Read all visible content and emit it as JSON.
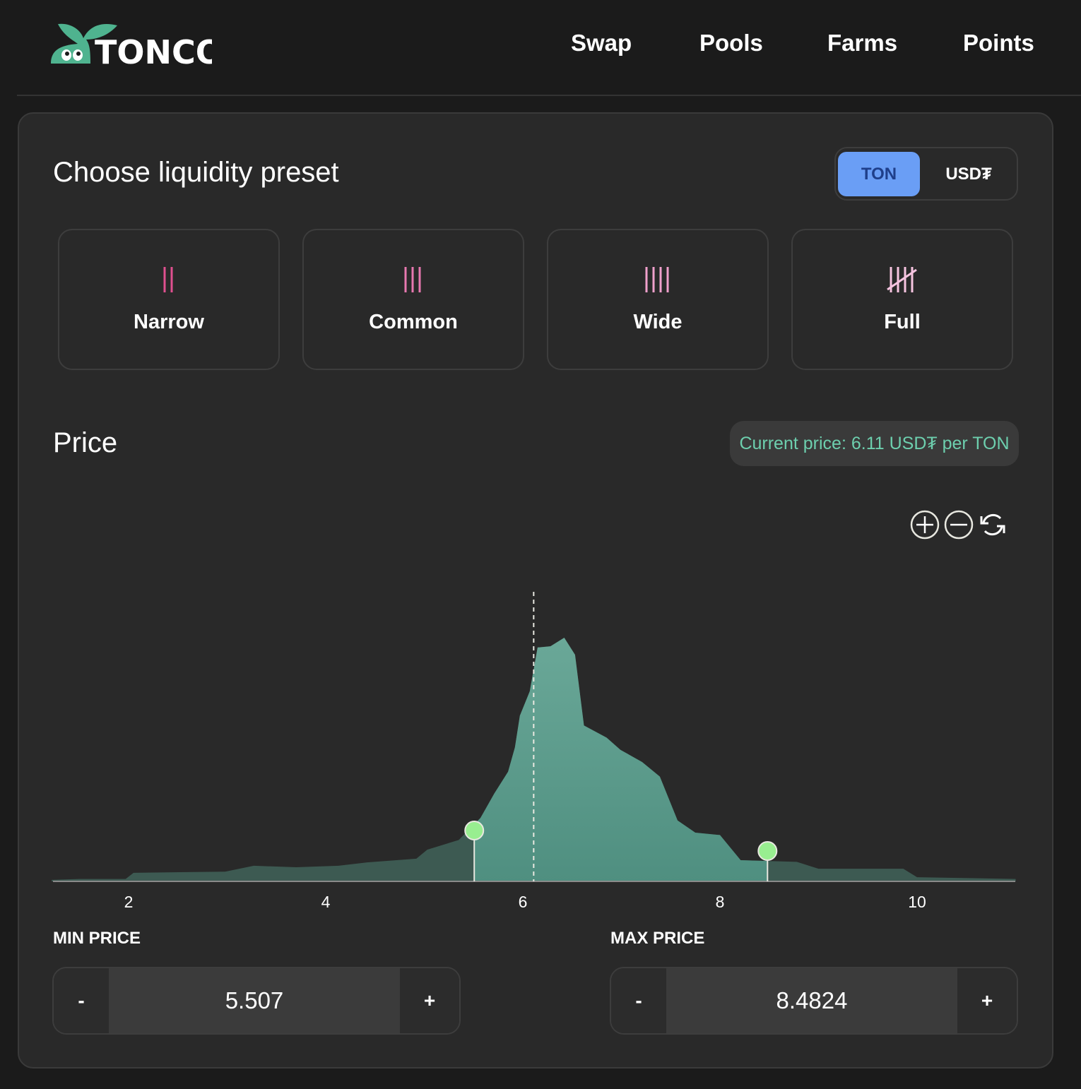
{
  "brand": {
    "logo_text": "TONCO",
    "logo_color": "#4fb38f"
  },
  "nav": {
    "items": [
      "Swap",
      "Pools",
      "Farms",
      "Points"
    ]
  },
  "preset": {
    "title": "Choose liquidity preset",
    "options": [
      {
        "label": "Narrow",
        "icon": "two-bars-icon",
        "color": "#e0508f"
      },
      {
        "label": "Common",
        "icon": "three-bars-icon",
        "color": "#e878b0"
      },
      {
        "label": "Wide",
        "icon": "four-bars-icon",
        "color": "#f0a0cc"
      },
      {
        "label": "Full",
        "icon": "tally-five-icon",
        "color": "#f6c4e0"
      }
    ]
  },
  "token_toggle": {
    "options": [
      "TON",
      "USD₮"
    ],
    "selected": "TON",
    "accent": "#6a9ef5"
  },
  "price": {
    "title": "Price",
    "current_price_label": "Current price: 6.11 USD₮ per TON"
  },
  "chart_controls": [
    "zoom-in-icon",
    "zoom-out-icon",
    "reset-icon"
  ],
  "chart_data": {
    "type": "area",
    "xlim": [
      1.22,
      11.0
    ],
    "x_ticks": [
      "2",
      "4",
      "6",
      "8",
      "10"
    ],
    "current_price": 6.11,
    "range": {
      "min": 5.507,
      "max": 8.4824
    },
    "fill_in_range": "#5a9c8c",
    "fill_out_range": "#3d5a52",
    "handle_color": "#98ee90",
    "points": [
      [
        1.22,
        0.006
      ],
      [
        1.5,
        0.01
      ],
      [
        1.97,
        0.01
      ],
      [
        2.05,
        0.035
      ],
      [
        2.98,
        0.04
      ],
      [
        3.27,
        0.064
      ],
      [
        3.7,
        0.058
      ],
      [
        4.13,
        0.064
      ],
      [
        4.42,
        0.078
      ],
      [
        4.92,
        0.093
      ],
      [
        5.03,
        0.13
      ],
      [
        5.35,
        0.17
      ],
      [
        5.57,
        0.26
      ],
      [
        5.71,
        0.36
      ],
      [
        5.85,
        0.45
      ],
      [
        5.92,
        0.55
      ],
      [
        5.97,
        0.68
      ],
      [
        6.07,
        0.78
      ],
      [
        6.15,
        0.96
      ],
      [
        6.28,
        0.965
      ],
      [
        6.42,
        1.0
      ],
      [
        6.53,
        0.93
      ],
      [
        6.62,
        0.64
      ],
      [
        6.85,
        0.59
      ],
      [
        6.99,
        0.54
      ],
      [
        7.21,
        0.49
      ],
      [
        7.39,
        0.43
      ],
      [
        7.57,
        0.25
      ],
      [
        7.75,
        0.2
      ],
      [
        8.0,
        0.19
      ],
      [
        8.21,
        0.087
      ],
      [
        8.78,
        0.08
      ],
      [
        9.0,
        0.052
      ],
      [
        9.86,
        0.052
      ],
      [
        10.0,
        0.017
      ],
      [
        11.0,
        0.01
      ]
    ]
  },
  "min_price": {
    "label": "MIN PRICE",
    "value": "5.507",
    "dec": "-",
    "inc": "+"
  },
  "max_price": {
    "label": "MAX PRICE",
    "value": "8.4824",
    "dec": "-",
    "inc": "+"
  }
}
